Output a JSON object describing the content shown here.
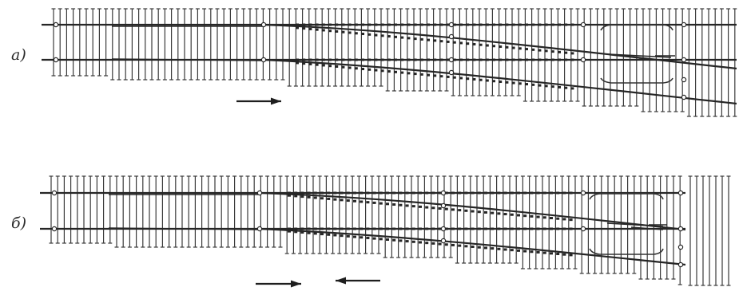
{
  "figure": {
    "panels": [
      {
        "id": "a",
        "label": "а)",
        "direction": "single"
      },
      {
        "id": "b",
        "label": "б)",
        "direction": "double"
      }
    ]
  },
  "colors": {
    "ink": "#262626",
    "background": "#ffffff"
  }
}
